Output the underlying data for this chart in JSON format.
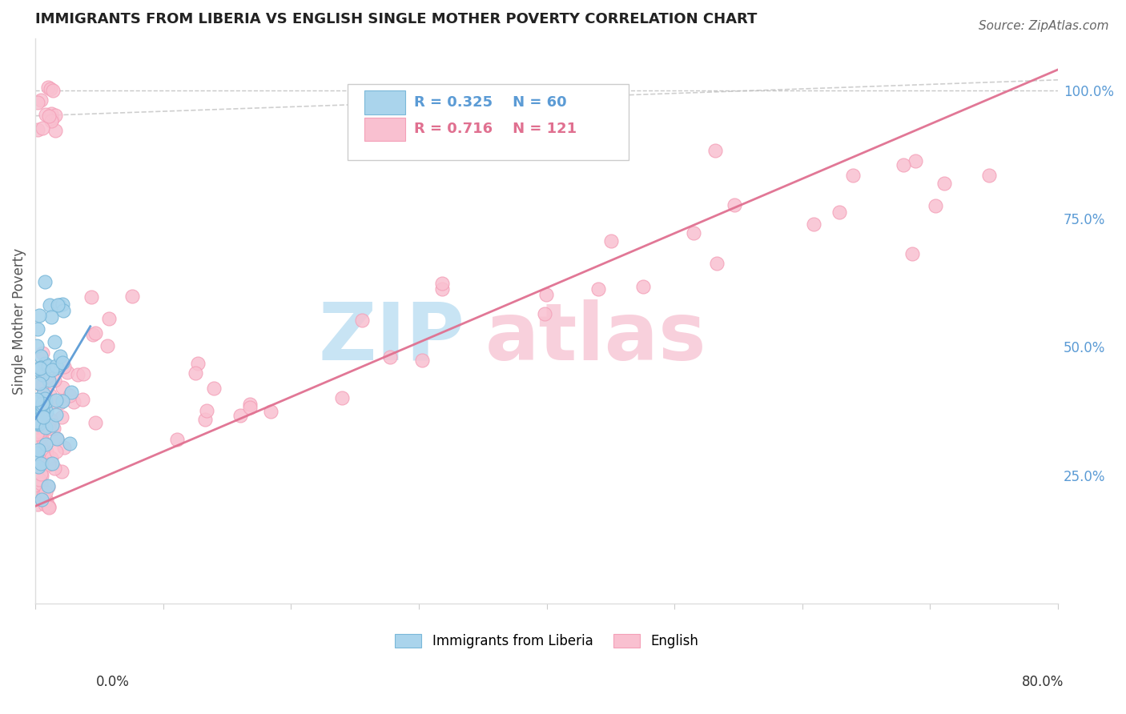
{
  "title": "IMMIGRANTS FROM LIBERIA VS ENGLISH SINGLE MOTHER POVERTY CORRELATION CHART",
  "source_text": "Source: ZipAtlas.com",
  "ylabel": "Single Mother Poverty",
  "legend_blue_r": "R = 0.325",
  "legend_blue_n": "N = 60",
  "legend_pink_r": "R = 0.716",
  "legend_pink_n": "N = 121",
  "legend_label_blue": "Immigrants from Liberia",
  "legend_label_pink": "English",
  "blue_color": "#7ab8d9",
  "blue_face_color": "#aad4ec",
  "pink_color": "#f4a0b8",
  "pink_face_color": "#f9c0d0",
  "blue_line_color": "#5b9bd5",
  "pink_line_color": "#e07090",
  "dashed_line_color": "#bbbbbb",
  "watermark_text": "ZIP",
  "watermark_text2": "atlas",
  "watermark_color_blue": "#c8e4f4",
  "watermark_color_pink": "#f8d0dc",
  "xlim": [
    0.0,
    0.8
  ],
  "ylim": [
    0.0,
    1.1
  ],
  "right_yticks": [
    0.0,
    0.25,
    0.5,
    0.75,
    1.0
  ],
  "right_yticklabels": [
    "",
    "25.0%",
    "50.0%",
    "75.0%",
    "100.0%"
  ],
  "blue_trend_x": [
    0.0,
    0.043
  ],
  "blue_trend_y": [
    0.36,
    0.54
  ],
  "pink_trend_x": [
    0.0,
    0.8
  ],
  "pink_trend_y": [
    0.19,
    1.04
  ],
  "figsize": [
    14.06,
    8.92
  ],
  "dpi": 100
}
